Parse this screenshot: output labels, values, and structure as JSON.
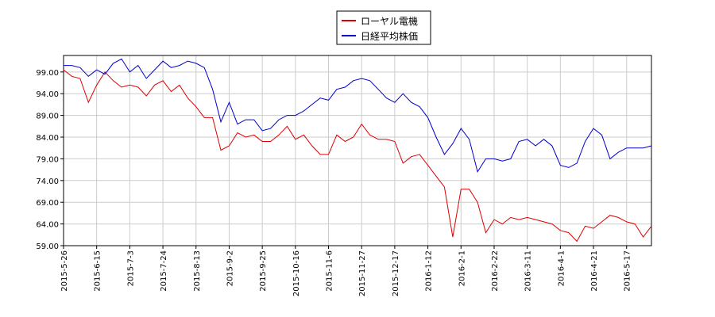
{
  "chart_data": {
    "type": "line",
    "categories": [
      "2015-5-26",
      null,
      null,
      null,
      "2015-6-15",
      null,
      null,
      null,
      "2015-7-3",
      null,
      null,
      null,
      "2015-7-24",
      null,
      null,
      null,
      "2015-8-13",
      null,
      null,
      null,
      "2015-9-2",
      null,
      null,
      null,
      "2015-9-25",
      null,
      null,
      null,
      "2015-10-16",
      null,
      null,
      null,
      "2015-11-6",
      null,
      null,
      null,
      "2015-11-27",
      null,
      null,
      null,
      "2015-12-17",
      null,
      null,
      null,
      "2016-1-12",
      null,
      null,
      null,
      "2016-2-1",
      null,
      null,
      null,
      "2016-2-22",
      null,
      null,
      null,
      "2016-3-11",
      null,
      null,
      null,
      "2016-4-1",
      null,
      null,
      null,
      "2016-4-21",
      null,
      null,
      null,
      "2016-5-17",
      null,
      null,
      null
    ],
    "series": [
      {
        "name": "ローヤル電機",
        "color": "#dd0000",
        "values": [
          99.5,
          98,
          97.5,
          92,
          96,
          99,
          97,
          95.5,
          96,
          95.5,
          93.5,
          96,
          97,
          94.5,
          96,
          93,
          91,
          88.5,
          88.5,
          81,
          82,
          85,
          84,
          84.5,
          83,
          83,
          84.5,
          86.5,
          83.5,
          84.5,
          82,
          80,
          80,
          84.5,
          83,
          84,
          87,
          84.5,
          83.5,
          83.5,
          83,
          78,
          79.5,
          80,
          77.5,
          75,
          72.5,
          61,
          72,
          72,
          69,
          62,
          65,
          64,
          65.5,
          65,
          65.5,
          65,
          64.5,
          64,
          62.5,
          62,
          60,
          63.5,
          63,
          64.5,
          66,
          65.5,
          64.5,
          64,
          61,
          63.5
        ]
      },
      {
        "name": "日経平均株価",
        "color": "#0000cc",
        "values": [
          100.5,
          100.5,
          100,
          98,
          99.5,
          98.5,
          101,
          102,
          99,
          100.5,
          97.5,
          99.5,
          101.5,
          100,
          100.5,
          101.5,
          101,
          100,
          95,
          87.5,
          92,
          87,
          88,
          88,
          85.5,
          86,
          88,
          89,
          89,
          90,
          91.5,
          93,
          92.5,
          95,
          95.5,
          97,
          97.5,
          97,
          95,
          93,
          92,
          94,
          92,
          91,
          88.5,
          84,
          80,
          82.5,
          86,
          83.5,
          76,
          79,
          79,
          78.5,
          79,
          83,
          83.5,
          82,
          83.5,
          82,
          77.5,
          77,
          78,
          83,
          86,
          84.5,
          79,
          80.5,
          81.5,
          81.5,
          81.5,
          82
        ]
      }
    ],
    "ylim": [
      59,
      102.8
    ],
    "yticks": [
      {
        "value": 59,
        "label": "59.00"
      },
      {
        "value": 64,
        "label": "64.00"
      },
      {
        "value": 69,
        "label": "69.00"
      },
      {
        "value": 74,
        "label": "74.00"
      },
      {
        "value": 79,
        "label": "79.00"
      },
      {
        "value": 84,
        "label": "84.00"
      },
      {
        "value": 89,
        "label": "89.00"
      },
      {
        "value": 94,
        "label": "94.00"
      },
      {
        "value": 99,
        "label": "99.00"
      }
    ],
    "grid": true,
    "legend": "top"
  }
}
